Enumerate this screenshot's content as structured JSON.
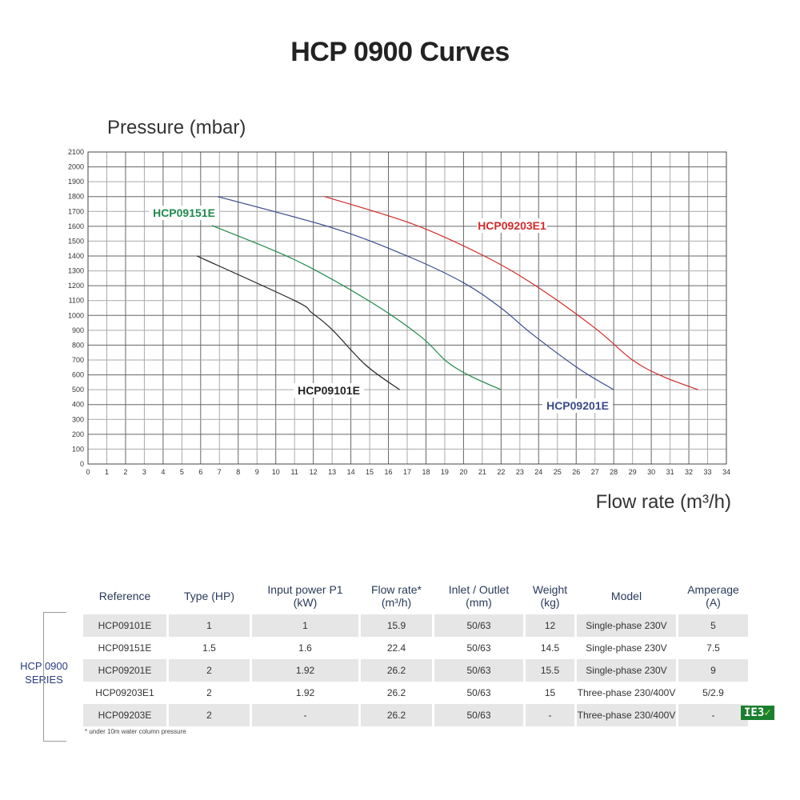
{
  "title": "HCP 0900 Curves",
  "chart_data": {
    "type": "line",
    "title": "HCP 0900 Curves",
    "xlabel": "Flow rate (m³/h)",
    "ylabel": "Pressure (mbar)",
    "xlim": [
      0,
      34
    ],
    "ylim": [
      0,
      2100
    ],
    "xticks": [
      0,
      1,
      2,
      3,
      4,
      5,
      6,
      7,
      8,
      9,
      10,
      11,
      12,
      13,
      14,
      15,
      16,
      17,
      18,
      19,
      20,
      21,
      22,
      23,
      24,
      25,
      26,
      27,
      28,
      29,
      30,
      31,
      32,
      33,
      34
    ],
    "yticks": [
      0,
      100,
      200,
      300,
      400,
      500,
      600,
      700,
      800,
      900,
      1000,
      1100,
      1200,
      1300,
      1400,
      1500,
      1600,
      1700,
      1800,
      1900,
      2000,
      2100
    ],
    "grid": true,
    "series": [
      {
        "name": "HCP09101E",
        "color": "#222222",
        "x": [
          5.8,
          11.0,
          11.9,
          13.0,
          14.8,
          16.6
        ],
        "y": [
          1400,
          1100,
          1020,
          905,
          665,
          500
        ]
      },
      {
        "name": "HCP09151E",
        "color": "#1f8a4c",
        "x": [
          6.6,
          11.0,
          15.0,
          17.7,
          19.1,
          20.4,
          22.0
        ],
        "y": [
          1605,
          1375,
          1095,
          860,
          690,
          590,
          500
        ]
      },
      {
        "name": "HCP09201E",
        "color": "#3a4a8c",
        "x": [
          6.9,
          13.0,
          17.0,
          20.0,
          22.0,
          23.6,
          26.1,
          28.0
        ],
        "y": [
          1800,
          1590,
          1400,
          1220,
          1050,
          880,
          645,
          500
        ]
      },
      {
        "name": "HCP09203E1",
        "color": "#d32a2a",
        "x": [
          12.6,
          17.3,
          21.1,
          23.9,
          27.0,
          29.0,
          30.6,
          32.5
        ],
        "y": [
          1800,
          1615,
          1400,
          1195,
          915,
          700,
          590,
          500
        ]
      }
    ]
  },
  "table": {
    "headers": [
      "Reference",
      "Type (HP)",
      "Input power P1\n(kW)",
      "Flow rate*\n(m³/h)",
      "Inlet / Outlet\n(mm)",
      "Weight\n(kg)",
      "Model",
      "Amperage\n(A)"
    ],
    "rows": [
      [
        "HCP09101E",
        "1",
        "1",
        "15.9",
        "50/63",
        "12",
        "Single-phase 230V",
        "5"
      ],
      [
        "HCP09151E",
        "1.5",
        "1.6",
        "22.4",
        "50/63",
        "14.5",
        "Single-phase 230V",
        "7.5"
      ],
      [
        "HCP09201E",
        "2",
        "1.92",
        "26.2",
        "50/63",
        "15.5",
        "Single-phase 230V",
        "9"
      ],
      [
        "HCP09203E1",
        "2",
        "1.92",
        "26.2",
        "50/63",
        "15",
        "Three-phase 230/400V",
        "5/2.9"
      ],
      [
        "HCP09203E",
        "2",
        "-",
        "26.2",
        "50/63",
        "-",
        "Three-phase 230/400V",
        "-"
      ]
    ],
    "footnote": "* under 10m water column pressure",
    "series_label": "HCP 0900\nSERIES",
    "badge": "IE3",
    "badge_check": "✓"
  }
}
